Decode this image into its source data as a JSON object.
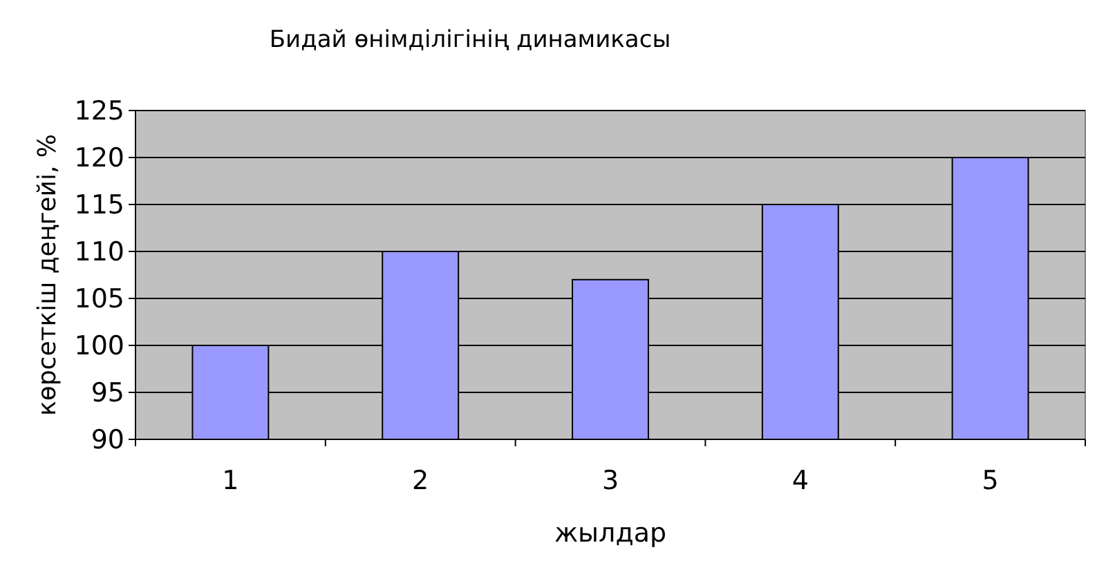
{
  "chart_data": {
    "type": "bar",
    "title": "Бидай өнімділігінің динамикасы",
    "xlabel": "жылдар",
    "ylabel": "көрсеткіш деңгейі, %",
    "categories": [
      "1",
      "2",
      "3",
      "4",
      "5"
    ],
    "values": [
      100,
      110,
      107,
      115,
      120
    ],
    "color": "#9999ff",
    "ylim": [
      90,
      125
    ],
    "yticks": [
      90,
      95,
      100,
      105,
      110,
      115,
      120,
      125
    ],
    "grid": "y"
  }
}
